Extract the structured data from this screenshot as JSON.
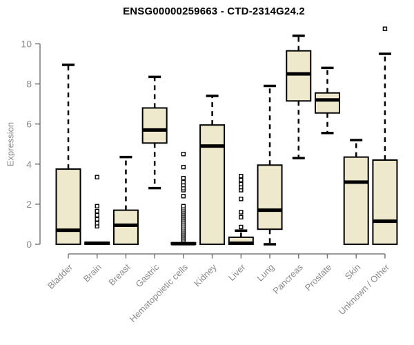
{
  "title": "ENSG00000259663 - CTD-2314G24.2",
  "chart_data": {
    "type": "boxplot",
    "title": "ENSG00000259663 - CTD-2314G24.2",
    "xlabel": "",
    "ylabel": "Expression",
    "ylim": [
      0,
      11
    ],
    "yticks": [
      0,
      2,
      4,
      6,
      8,
      10
    ],
    "grid": false,
    "legend": "none",
    "box_fill": "#EEE8CD",
    "box_border": "#000000",
    "median_color": "#000000",
    "axis_color": "#7A7A7A",
    "tick_label_color": "#8A8A8A",
    "categories": [
      "Bladder",
      "Brain",
      "Breast",
      "Gastric",
      "Hematopoietic cells",
      "Kidney",
      "Liver",
      "Lung",
      "Pancreas",
      "Prostate",
      "Skin",
      "Unknown / Other"
    ],
    "series": [
      {
        "name": "Bladder",
        "whisker_low": 0,
        "q1": 0,
        "median": 0.7,
        "q3": 3.75,
        "whisker_high": 8.95,
        "outliers": []
      },
      {
        "name": "Brain",
        "whisker_low": 0,
        "q1": 0,
        "median": 0.05,
        "q3": 0.1,
        "whisker_high": 0.1,
        "outliers": [
          0.9,
          1.05,
          1.25,
          1.45,
          1.65,
          1.9,
          3.35
        ]
      },
      {
        "name": "Breast",
        "whisker_low": 0,
        "q1": 0,
        "median": 0.95,
        "q3": 1.7,
        "whisker_high": 4.35,
        "outliers": []
      },
      {
        "name": "Gastric",
        "whisker_low": 2.8,
        "q1": 5.05,
        "median": 5.7,
        "q3": 6.8,
        "whisker_high": 8.35,
        "outliers": []
      },
      {
        "name": "Hematopoietic cells",
        "whisker_low": 0,
        "q1": 0,
        "median": 0.03,
        "q3": 0.07,
        "whisker_high": 0.07,
        "outliers": [
          0.2,
          0.3,
          0.4,
          0.5,
          0.6,
          0.7,
          0.8,
          0.9,
          1.0,
          1.1,
          1.2,
          1.3,
          1.4,
          1.5,
          1.6,
          1.7,
          1.8,
          1.9,
          2.4,
          2.7,
          2.8,
          2.95,
          3.1,
          3.3,
          3.85,
          4.5
        ]
      },
      {
        "name": "Kidney",
        "whisker_low": 0,
        "q1": 0,
        "median": 4.9,
        "q3": 5.95,
        "whisker_high": 7.4,
        "outliers": []
      },
      {
        "name": "Liver",
        "whisker_low": 0,
        "q1": 0,
        "median": 0.05,
        "q3": 0.35,
        "whisker_high": 0.68,
        "outliers": [
          0.86,
          1.35,
          1.6,
          2.26,
          2.7,
          2.85,
          3.0,
          3.2,
          3.4
        ]
      },
      {
        "name": "Lung",
        "whisker_low": 0,
        "q1": 0.75,
        "median": 1.7,
        "q3": 3.95,
        "whisker_high": 7.9,
        "outliers": []
      },
      {
        "name": "Pancreas",
        "whisker_low": 4.3,
        "q1": 7.15,
        "median": 8.5,
        "q3": 9.65,
        "whisker_high": 10.4,
        "outliers": []
      },
      {
        "name": "Prostate",
        "whisker_low": 5.55,
        "q1": 6.55,
        "median": 7.2,
        "q3": 7.55,
        "whisker_high": 8.8,
        "outliers": []
      },
      {
        "name": "Skin",
        "whisker_low": 0,
        "q1": 0,
        "median": 3.1,
        "q3": 4.35,
        "whisker_high": 5.2,
        "outliers": []
      },
      {
        "name": "Unknown / Other",
        "whisker_low": 0,
        "q1": 0,
        "median": 1.15,
        "q3": 4.2,
        "whisker_high": 9.5,
        "outliers": [
          10.75
        ]
      }
    ]
  }
}
